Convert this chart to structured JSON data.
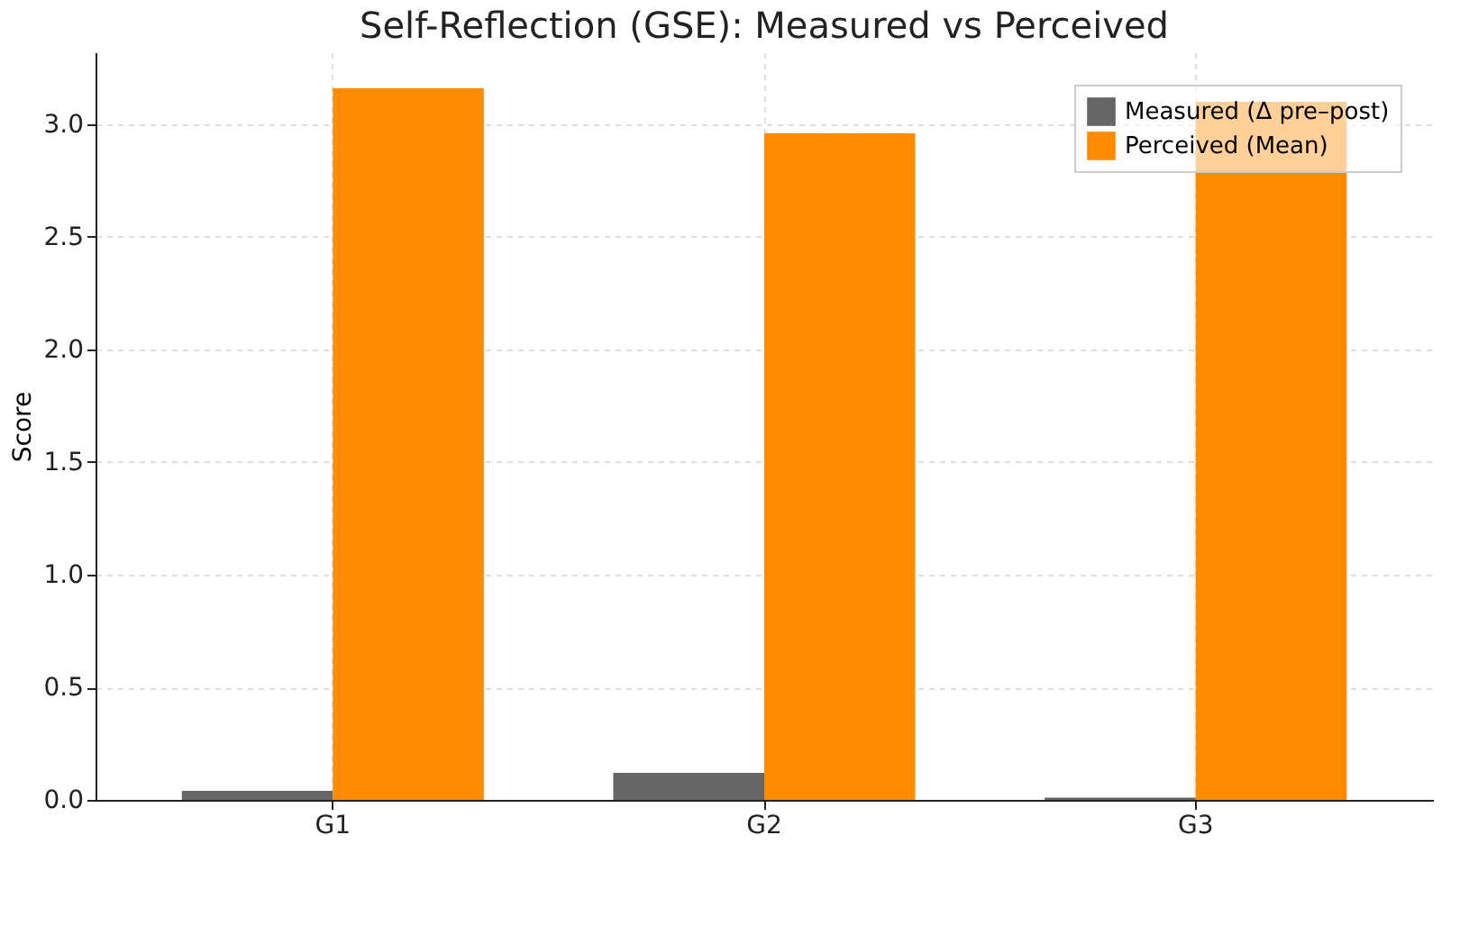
{
  "chart_data": {
    "type": "bar",
    "title": "Self-Reflection (GSE): Measured vs Perceived",
    "ylabel": "Score",
    "categories": [
      "G1",
      "G2",
      "G3"
    ],
    "series": [
      {
        "name": "Measured (Δ pre–post)",
        "color": "#666666",
        "values": [
          0.04,
          0.12,
          0.01
        ]
      },
      {
        "name": "Perceived (Mean)",
        "color": "#ff8c00",
        "values": [
          3.16,
          2.96,
          3.1
        ]
      }
    ],
    "ylim": [
      0,
      3.32
    ],
    "yticks": [
      {
        "value": 0,
        "label": "0.0"
      },
      0.5,
      {
        "value": 1,
        "label": "1.0"
      },
      1.5,
      {
        "value": 2,
        "label": "2.0"
      },
      2.5,
      {
        "value": 3,
        "label": "3.0"
      }
    ],
    "grid": true,
    "legend": "top right"
  }
}
